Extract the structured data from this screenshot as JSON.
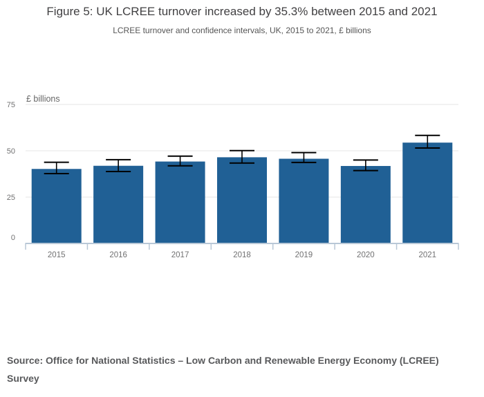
{
  "header": {
    "title": "Figure 5: UK LCREE turnover increased by 35.3% between 2015 and 2021",
    "subtitle": "LCREE turnover and confidence intervals, UK, 2015 to 2021, £ billions"
  },
  "chart_data": {
    "type": "bar",
    "title": "Figure 5: UK LCREE turnover increased by 35.3% between 2015 and 2021",
    "subtitle": "LCREE turnover and confidence intervals, UK, 2015 to 2021, £ billions",
    "categories": [
      "2015",
      "2016",
      "2017",
      "2018",
      "2019",
      "2020",
      "2021"
    ],
    "series": [
      {
        "name": "LCREE turnover",
        "values": [
          40.2,
          41.9,
          44.2,
          46.5,
          45.7,
          41.8,
          54.4
        ],
        "ci_low": [
          37.7,
          38.8,
          41.9,
          43.4,
          43.7,
          39.3,
          51.5
        ],
        "ci_high": [
          43.8,
          45.2,
          47.1,
          50.1,
          49.0,
          45.0,
          58.3
        ]
      }
    ],
    "xlabel": "",
    "ylabel": "£ billions",
    "ylim": [
      0,
      75
    ],
    "yticks": [
      0,
      25,
      50,
      75
    ],
    "grid": true,
    "legend": false,
    "error_bars": true
  },
  "colors": {
    "bar": "#206095",
    "error_bar": "#000000",
    "gridline": "#e6e6e6",
    "axis_line": "#b8c7d6",
    "tick_label": "#707071",
    "unit_label": "#666666"
  },
  "footer": {
    "source": "Source: Office for National Statistics – Low Carbon and Renewable Energy Economy (LCREE) Survey"
  }
}
